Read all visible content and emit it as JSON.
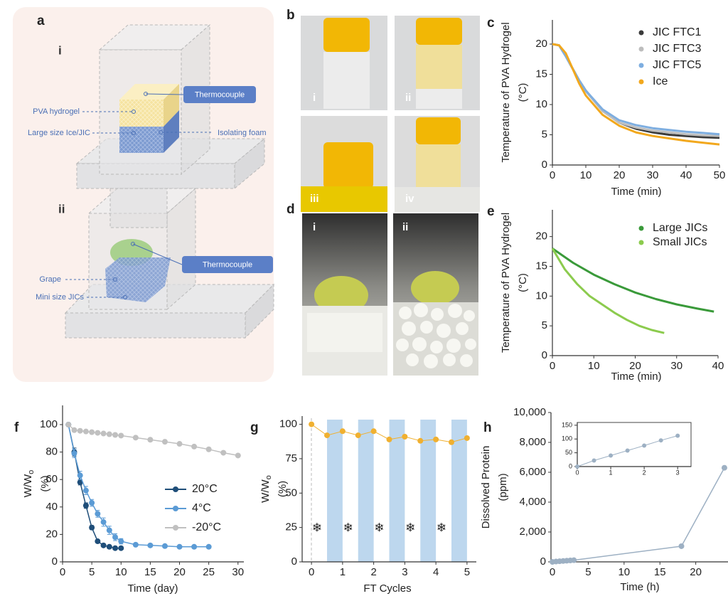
{
  "panel_labels": [
    "a",
    "b",
    "c",
    "d",
    "e",
    "f",
    "g",
    "h"
  ],
  "panel_a": {
    "sub_labels": [
      "i",
      "ii"
    ],
    "diagram_i": {
      "thermocouple": "Thermocouple",
      "layer_top": "PVA hydrogel",
      "layer_bottom": "Large size Ice/JIC",
      "base": "Isolating foam"
    },
    "diagram_ii": {
      "thermocouple": "Thermocouple",
      "fruit": "Grape",
      "coolant": "Mini size JICs"
    }
  },
  "panel_b": {
    "photo_labels": [
      "i",
      "ii",
      "iii",
      "iv"
    ]
  },
  "panel_d": {
    "photo_labels": [
      "i",
      "ii"
    ]
  },
  "chart_data": [
    {
      "type": "line",
      "x": [
        0,
        2,
        4,
        6,
        8,
        10,
        15,
        20,
        25,
        30,
        35,
        40,
        45,
        50
      ],
      "series": [
        {
          "name": "JIC FTC1",
          "color": "#3b3b3b",
          "values": [
            20,
            19.8,
            18,
            16,
            14,
            12.3,
            9,
            7,
            6,
            5.4,
            5,
            4.8,
            4.6,
            4.5
          ]
        },
        {
          "name": "JIC FTC3",
          "color": "#bdbdbd",
          "values": [
            20,
            19.8,
            18,
            16,
            14,
            12.2,
            8.9,
            7,
            6.2,
            5.7,
            5.4,
            5.1,
            4.9,
            4.8
          ]
        },
        {
          "name": "JIC FTC5",
          "color": "#7eaee0",
          "values": [
            20,
            19.8,
            18,
            16,
            14,
            12.3,
            9.2,
            7.4,
            6.6,
            6.1,
            5.8,
            5.5,
            5.3,
            5.1
          ]
        },
        {
          "name": "Ice",
          "color": "#f2a81d",
          "values": [
            20,
            19.8,
            18.5,
            16,
            13.5,
            11.5,
            8.3,
            6.5,
            5.4,
            4.8,
            4.4,
            4,
            3.7,
            3.4
          ]
        }
      ],
      "xlim": [
        0,
        50
      ],
      "xticks": [
        0,
        10,
        20,
        30,
        40,
        50
      ],
      "ylim": [
        0,
        24
      ],
      "yticks": [
        0,
        5,
        10,
        15,
        20
      ],
      "x_label": "Time (min)",
      "y_label": "Temperature of PVA Hydrogel",
      "y_unit": "(°C)",
      "legend": "upper right"
    },
    {
      "type": "line",
      "series": [
        {
          "name": "Large JICs",
          "color": "#3a9a3a",
          "x": [
            0,
            5,
            10,
            15,
            20,
            25,
            30,
            35,
            39
          ],
          "values": [
            18,
            15.6,
            13.6,
            12,
            10.6,
            9.5,
            8.6,
            7.9,
            7.4
          ]
        },
        {
          "name": "Small JICs",
          "color": "#8ccb4e",
          "x": [
            0,
            3,
            6,
            9,
            12,
            15,
            18,
            21,
            24,
            27
          ],
          "values": [
            18,
            14.5,
            12,
            10,
            8.6,
            7.2,
            6,
            5,
            4.3,
            3.8
          ]
        }
      ],
      "xlim": [
        0,
        40
      ],
      "xticks": [
        0,
        10,
        20,
        30,
        40
      ],
      "ylim": [
        0,
        24.5
      ],
      "yticks": [
        0,
        5,
        10,
        15,
        20
      ],
      "x_label": "Time (min)",
      "y_label": "Temperature of PVA Hydrogel",
      "y_unit": "(°C)",
      "legend": "upper right"
    },
    {
      "type": "line",
      "markers": true,
      "series": [
        {
          "name": "20°C",
          "color": "#1f4e79",
          "x": [
            1,
            2,
            3,
            4,
            5,
            6,
            7,
            8,
            9,
            10
          ],
          "values": [
            100,
            80,
            58,
            41,
            25,
            15,
            12,
            11,
            10,
            10
          ],
          "errors": [
            0,
            3,
            2,
            2,
            1.5,
            1,
            1,
            1,
            1,
            1
          ]
        },
        {
          "name": "4°C",
          "color": "#5b9bd5",
          "x": [
            1,
            2,
            3,
            4,
            5,
            6,
            7,
            8,
            9,
            10,
            12.5,
            15,
            17.5,
            20,
            22.5,
            25
          ],
          "values": [
            100,
            79,
            63,
            52,
            43,
            35,
            29,
            23,
            18,
            15,
            12.5,
            12,
            11.5,
            11,
            11,
            11
          ],
          "errors": [
            0,
            3,
            3,
            3,
            2.5,
            2.5,
            3,
            3,
            2.5,
            2,
            1,
            1,
            1,
            1,
            1,
            1
          ]
        },
        {
          "name": "-20°C",
          "color": "#c0c0c0",
          "x": [
            1,
            2,
            3,
            4,
            5,
            6,
            7,
            8,
            9,
            10,
            12.5,
            15,
            17.5,
            20,
            22.5,
            25,
            27.5,
            30
          ],
          "values": [
            100,
            96,
            95.5,
            95,
            94.5,
            94,
            93.5,
            93,
            92.5,
            92,
            90.5,
            89,
            87.5,
            86,
            84,
            82,
            79.5,
            77.5
          ]
        }
      ],
      "xlim": [
        0,
        31
      ],
      "xticks": [
        0,
        5,
        10,
        15,
        20,
        25,
        30
      ],
      "ylim": [
        0,
        114
      ],
      "yticks": [
        0,
        20,
        40,
        60,
        80,
        100
      ],
      "x_label": "Time (day)",
      "y_label": "W/W",
      "y_label_sub": "o",
      "y_unit": "(%)",
      "legend": "center right"
    },
    {
      "type": "line",
      "markers": true,
      "x": [
        0,
        0.5,
        1,
        1.5,
        2,
        2.5,
        3,
        3.5,
        4,
        4.5,
        5
      ],
      "series": [
        {
          "color": "#f0b030",
          "values": [
            100,
            92,
            95,
            92,
            95,
            89,
            91,
            88,
            89,
            87,
            90
          ]
        }
      ],
      "bands": [
        {
          "from": 0.5,
          "to": 1,
          "label": "❄"
        },
        {
          "from": 1.5,
          "to": 2,
          "label": "❄"
        },
        {
          "from": 2.5,
          "to": 3,
          "label": "❄"
        },
        {
          "from": 3.5,
          "to": 4,
          "label": "❄"
        },
        {
          "from": 4.5,
          "to": 5,
          "label": "❄"
        }
      ],
      "band_color": "#bdd7ee",
      "xlim": [
        -0.3,
        5.3
      ],
      "xticks": [
        0,
        1,
        2,
        3,
        4,
        5
      ],
      "ylim": [
        0,
        106
      ],
      "yticks": [
        0,
        25,
        50,
        75,
        100
      ],
      "x_label": "FT Cycles",
      "y_label": "W/W",
      "y_label_sub": "o",
      "y_unit": "(%)"
    },
    {
      "type": "line",
      "markers": true,
      "x": [
        0,
        0.5,
        1,
        1.5,
        2,
        2.5,
        3,
        18,
        24
      ],
      "series": [
        {
          "color": "#9db0c3",
          "values": [
            0,
            22,
            40,
            58,
            76,
            95,
            112,
            1050,
            6300
          ]
        }
      ],
      "xlim": [
        -0.2,
        24.5
      ],
      "xticks": [
        0,
        5,
        10,
        15,
        20
      ],
      "ylim": [
        0,
        10000
      ],
      "yticks": [
        0,
        {
          "value": 2000,
          "label": "2,000"
        },
        {
          "value": 4000,
          "label": "4,000"
        },
        {
          "value": 6000,
          "label": "6,000"
        },
        {
          "value": 8000,
          "label": "8,000"
        },
        {
          "value": 10000,
          "label": "10,000"
        }
      ],
      "x_label": "Time (h)",
      "y_label": "Dissolved Protein",
      "y_unit": "(ppm)"
    },
    {
      "type": "line",
      "markers": true,
      "x": [
        0,
        0.5,
        1,
        1.5,
        2,
        2.5,
        3
      ],
      "series": [
        {
          "color": "#9db0c3",
          "values": [
            0,
            22,
            40,
            58,
            76,
            95,
            112
          ]
        }
      ],
      "xlim": [
        0,
        3.4
      ],
      "xticks": [
        0,
        1,
        2,
        3
      ],
      "ylim": [
        0,
        160
      ],
      "yticks": [
        0,
        50,
        100,
        150
      ]
    }
  ]
}
